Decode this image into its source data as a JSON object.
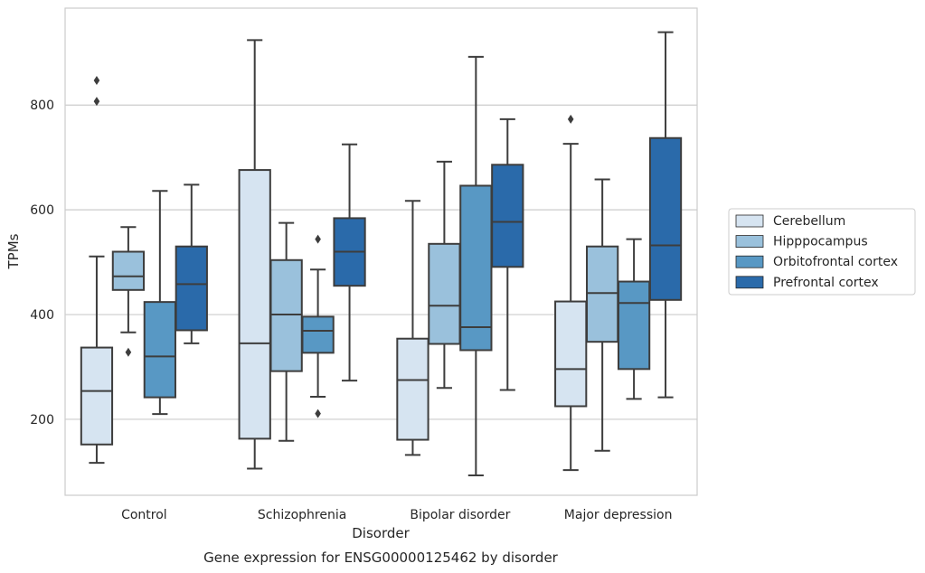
{
  "chart_data": {
    "type": "box",
    "title": "",
    "caption": "Gene expression for ENSG00000125462 by disorder",
    "xlabel": "Disorder",
    "ylabel": "TPMs",
    "ylim": [
      55,
      985
    ],
    "yticks": [
      200,
      400,
      600,
      800
    ],
    "grid": "horizontal",
    "legend_position": "right",
    "categories": [
      "Control",
      "Schizophrenia",
      "Bipolar disorder",
      "Major depression"
    ],
    "series": [
      {
        "name": "Cerebellum",
        "color": "#d6e4f1",
        "boxes": [
          {
            "whislo": 117,
            "q1": 152,
            "med": 254,
            "q3": 337,
            "whishi": 511,
            "fliers": [
              807,
              847
            ]
          },
          {
            "whislo": 106,
            "q1": 163,
            "med": 345,
            "q3": 676,
            "whishi": 924,
            "fliers": []
          },
          {
            "whislo": 132,
            "q1": 161,
            "med": 275,
            "q3": 354,
            "whishi": 617,
            "fliers": []
          },
          {
            "whislo": 103,
            "q1": 225,
            "med": 296,
            "q3": 425,
            "whishi": 726,
            "fliers": [
              773
            ]
          }
        ]
      },
      {
        "name": "Hipppocampus",
        "color": "#9ac1dc",
        "boxes": [
          {
            "whislo": 366,
            "q1": 447,
            "med": 473,
            "q3": 520,
            "whishi": 567,
            "fliers": [
              328
            ]
          },
          {
            "whislo": 159,
            "q1": 292,
            "med": 400,
            "q3": 504,
            "whishi": 575,
            "fliers": []
          },
          {
            "whislo": 260,
            "q1": 344,
            "med": 417,
            "q3": 535,
            "whishi": 692,
            "fliers": []
          },
          {
            "whislo": 140,
            "q1": 348,
            "med": 441,
            "q3": 530,
            "whishi": 658,
            "fliers": []
          }
        ]
      },
      {
        "name": "Orbitofrontal cortex",
        "color": "#5898c4",
        "boxes": [
          {
            "whislo": 210,
            "q1": 242,
            "med": 320,
            "q3": 424,
            "whishi": 636,
            "fliers": []
          },
          {
            "whislo": 243,
            "q1": 327,
            "med": 369,
            "q3": 396,
            "whishi": 486,
            "fliers": [
              211,
              544
            ]
          },
          {
            "whislo": 93,
            "q1": 332,
            "med": 376,
            "q3": 646,
            "whishi": 892,
            "fliers": []
          },
          {
            "whislo": 239,
            "q1": 296,
            "med": 422,
            "q3": 463,
            "whishi": 544,
            "fliers": []
          }
        ]
      },
      {
        "name": "Prefrontal cortex",
        "color": "#2a6aaa",
        "boxes": [
          {
            "whislo": 345,
            "q1": 370,
            "med": 458,
            "q3": 530,
            "whishi": 648,
            "fliers": []
          },
          {
            "whislo": 274,
            "q1": 455,
            "med": 520,
            "q3": 584,
            "whishi": 725,
            "fliers": []
          },
          {
            "whislo": 256,
            "q1": 491,
            "med": 577,
            "q3": 686,
            "whishi": 773,
            "fliers": []
          },
          {
            "whislo": 242,
            "q1": 428,
            "med": 532,
            "q3": 737,
            "whishi": 939,
            "fliers": []
          }
        ]
      }
    ]
  }
}
